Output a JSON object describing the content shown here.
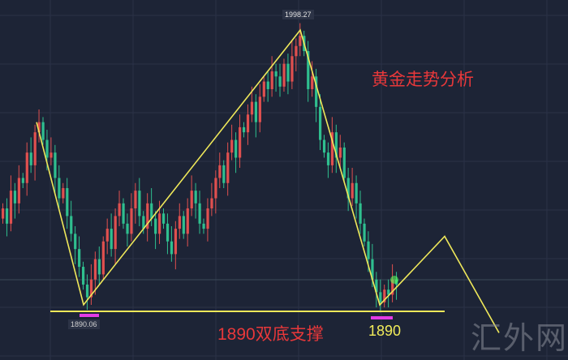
{
  "chart_data": {
    "type": "candlestick",
    "title": "黄金走势分析",
    "annotation": "1890双底支撑",
    "peak_label": "1998.27",
    "low_label_left": "1890.06",
    "low_label_right": "1890",
    "support_level": 1890,
    "grid": true,
    "colors": {
      "up": "#e0504f",
      "down": "#2fbf8f",
      "trendline": "#efe85a",
      "background": "#1d2436",
      "text_red": "#e8383a",
      "marker": "#e43be6"
    },
    "closes": [
      1928,
      1922,
      1935,
      1930,
      1940,
      1938,
      1950,
      1945,
      1958,
      1962,
      1955,
      1948,
      1950,
      1940,
      1932,
      1936,
      1925,
      1918,
      1912,
      1905,
      1898,
      1893,
      1900,
      1908,
      1902,
      1915,
      1920,
      1912,
      1925,
      1930,
      1922,
      1918,
      1928,
      1935,
      1925,
      1920,
      1930,
      1924,
      1918,
      1926,
      1922,
      1915,
      1910,
      1920,
      1925,
      1918,
      1928,
      1935,
      1930,
      1922,
      1920,
      1928,
      1932,
      1940,
      1945,
      1938,
      1950,
      1955,
      1948,
      1960,
      1958,
      1965,
      1970,
      1962,
      1972,
      1978,
      1975,
      1982,
      1980,
      1976,
      1985,
      1978,
      1988,
      1992,
      1996,
      1990,
      1975,
      1980,
      1968,
      1955,
      1950,
      1945,
      1958,
      1948,
      1952,
      1940,
      1932,
      1938,
      1930,
      1922,
      1915,
      1908,
      1900,
      1895,
      1891,
      1896,
      1894,
      1900,
      1898
    ],
    "trendline_prices": [
      1962,
      1890.06,
      1998.27,
      1890,
      1917,
      1879
    ]
  },
  "watermark": "汇外网"
}
